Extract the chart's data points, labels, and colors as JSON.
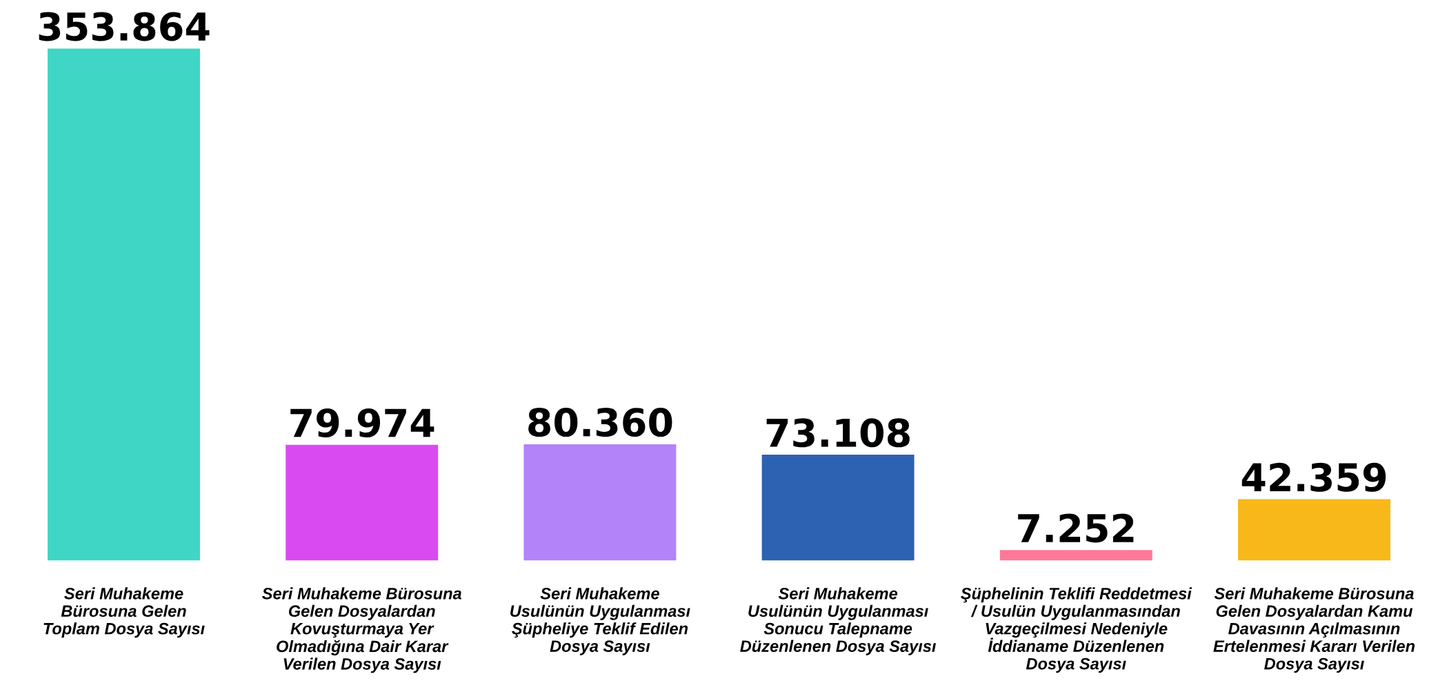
{
  "chart_data": {
    "type": "bar",
    "categories": [
      "Seri Muhakeme\nBürosuna Gelen\nToplam Dosya Sayısı",
      "Seri Muhakeme Bürosuna\nGelen Dosyalardan\nKovuşturmaya Yer\nOlmadığına Dair Karar\nVerilen Dosya Sayısı",
      "Seri Muhakeme\nUsulünün Uygulanması\nŞüpheliye Teklif Edilen\nDosya Sayısı",
      "Seri Muhakeme\nUsulünün Uygulanması\nSonucu Talepname\nDüzenlenen Dosya Sayısı",
      "Şüphelinin Teklifi Reddetmesi\n/ Usulün Uygulanmasından\nVazgeçilmesi Nedeniyle\nİddianame Düzenlenen\nDosya Sayısı",
      "Seri Muhakeme Bürosuna\nGelen Dosyalardan Kamu\nDavasının Açılmasının\nErtelenmesi Kararı Verilen\nDosya Sayısı"
    ],
    "values": [
      353864,
      79974,
      80360,
      73108,
      7252,
      42359
    ],
    "value_labels": [
      "353.864",
      "79.974",
      "80.360",
      "73.108",
      "7.252",
      "42.359"
    ],
    "colors": [
      "#3fd6c6",
      "#d94af0",
      "#b383f9",
      "#2d61b2",
      "#ff7898",
      "#f8b81a"
    ]
  }
}
